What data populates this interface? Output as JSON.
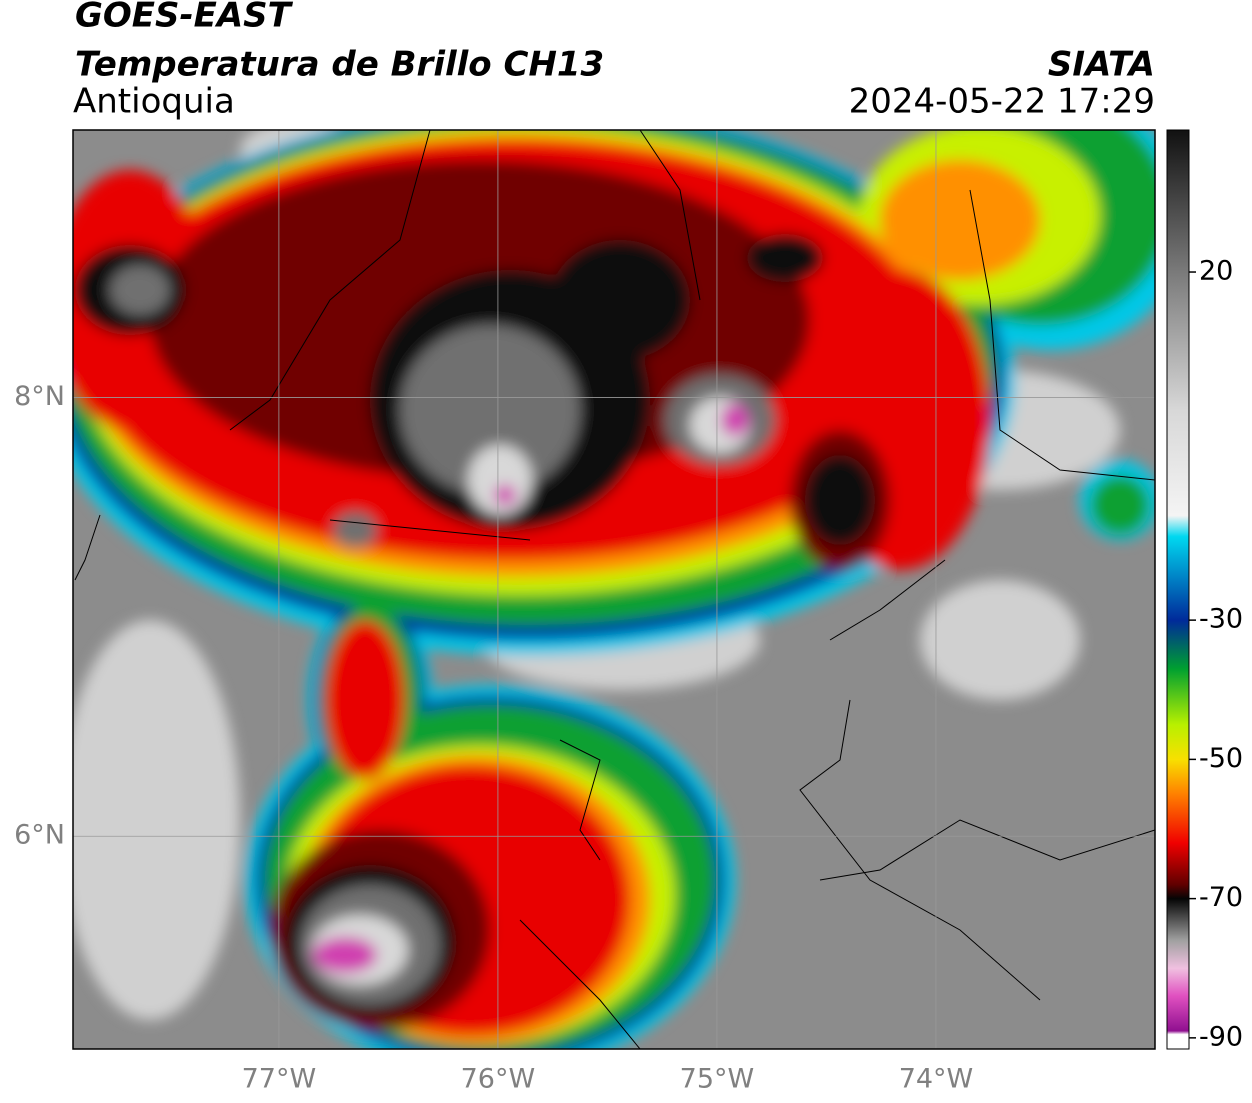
{
  "header": {
    "title": "GOES-EAST",
    "subtitle": "Temperatura de Brillo CH13",
    "region": "Antioquia",
    "source": "SIATA",
    "datetime": "2024-05-22 17:29"
  },
  "map": {
    "xlim": [
      -77.94,
      -73.0
    ],
    "ylim": [
      5.03,
      9.22
    ],
    "xticks": [
      {
        "value": -77,
        "label": "77°W"
      },
      {
        "value": -76,
        "label": "76°W"
      },
      {
        "value": -75,
        "label": "75°W"
      },
      {
        "value": -74,
        "label": "74°W"
      }
    ],
    "yticks": [
      {
        "value": 8,
        "label": "8°N"
      },
      {
        "value": 6,
        "label": "6°N"
      }
    ],
    "grid": true
  },
  "colorbar": {
    "lim": [
      -91.6,
      40.4
    ],
    "ticks": [
      20,
      -30,
      -50,
      -70,
      -90
    ],
    "colors": [
      [
        40.4,
        "#111111"
      ],
      [
        20,
        "#7a7a7a"
      ],
      [
        0,
        "#d8d8d8"
      ],
      [
        -15,
        "#f4f4f4"
      ],
      [
        -18,
        "#00d8f0"
      ],
      [
        -30,
        "#002a9a"
      ],
      [
        -37,
        "#00a030"
      ],
      [
        -45,
        "#b8f000"
      ],
      [
        -50,
        "#f8e000"
      ],
      [
        -55,
        "#ff8000"
      ],
      [
        -62,
        "#f00000"
      ],
      [
        -68,
        "#600000"
      ],
      [
        -70,
        "#050505"
      ],
      [
        -76,
        "#a0a0a0"
      ],
      [
        -80,
        "#f0c0e0"
      ],
      [
        -84,
        "#e050c0"
      ],
      [
        -89,
        "#901090"
      ],
      [
        -89.5,
        "#ffffff"
      ],
      [
        -91.6,
        "#ffffff"
      ]
    ]
  }
}
